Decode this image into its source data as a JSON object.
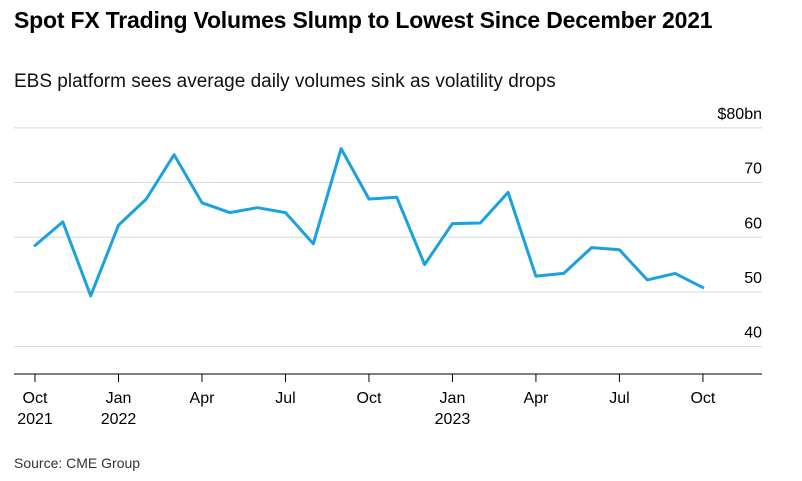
{
  "title": "Spot FX Trading Volumes Slump to Lowest Since December 2021",
  "subtitle": "EBS platform sees average daily volumes sink as volatility drops",
  "source": "Source: CME Group",
  "colors": {
    "line": "#1ba1e2",
    "grid": "#d9d9d9",
    "axis": "#000000",
    "text": "#000000"
  },
  "chart_data": {
    "type": "line",
    "title": "Spot FX Trading Volumes Slump to Lowest Since December 2021",
    "subtitle": "EBS platform sees average daily volumes sink as volatility drops",
    "xlabel": "",
    "ylabel": "",
    "ylim": [
      35,
      80
    ],
    "grid": true,
    "y_axis_side": "right",
    "y_ticks": [
      40,
      50,
      60,
      70,
      80
    ],
    "y_tick_labels": [
      "40",
      "50",
      "60",
      "70",
      "$80bn"
    ],
    "x_ticks": [
      {
        "date": "2021-10",
        "label": "Oct",
        "sublabel": "2021"
      },
      {
        "date": "2022-01",
        "label": "Jan",
        "sublabel": "2022"
      },
      {
        "date": "2022-04",
        "label": "Apr",
        "sublabel": ""
      },
      {
        "date": "2022-07",
        "label": "Jul",
        "sublabel": ""
      },
      {
        "date": "2022-10",
        "label": "Oct",
        "sublabel": ""
      },
      {
        "date": "2023-01",
        "label": "Jan",
        "sublabel": "2023"
      },
      {
        "date": "2023-04",
        "label": "Apr",
        "sublabel": ""
      },
      {
        "date": "2023-07",
        "label": "Jul",
        "sublabel": ""
      },
      {
        "date": "2023-10",
        "label": "Oct",
        "sublabel": ""
      }
    ],
    "x": [
      "2021-10",
      "2021-11",
      "2021-12",
      "2022-01",
      "2022-02",
      "2022-03",
      "2022-04",
      "2022-05",
      "2022-06",
      "2022-07",
      "2022-08",
      "2022-09",
      "2022-10",
      "2022-11",
      "2022-12",
      "2023-01",
      "2023-02",
      "2023-03",
      "2023-04",
      "2023-05",
      "2023-06",
      "2023-07",
      "2023-08",
      "2023-09",
      "2023-10"
    ],
    "values": [
      58.5,
      62.8,
      49.3,
      62.2,
      67.0,
      75.1,
      66.3,
      64.5,
      65.4,
      64.5,
      58.8,
      76.2,
      67.0,
      67.3,
      55.0,
      62.5,
      62.6,
      68.2,
      52.9,
      53.4,
      58.1,
      57.7,
      52.2,
      53.4,
      50.8
    ]
  }
}
